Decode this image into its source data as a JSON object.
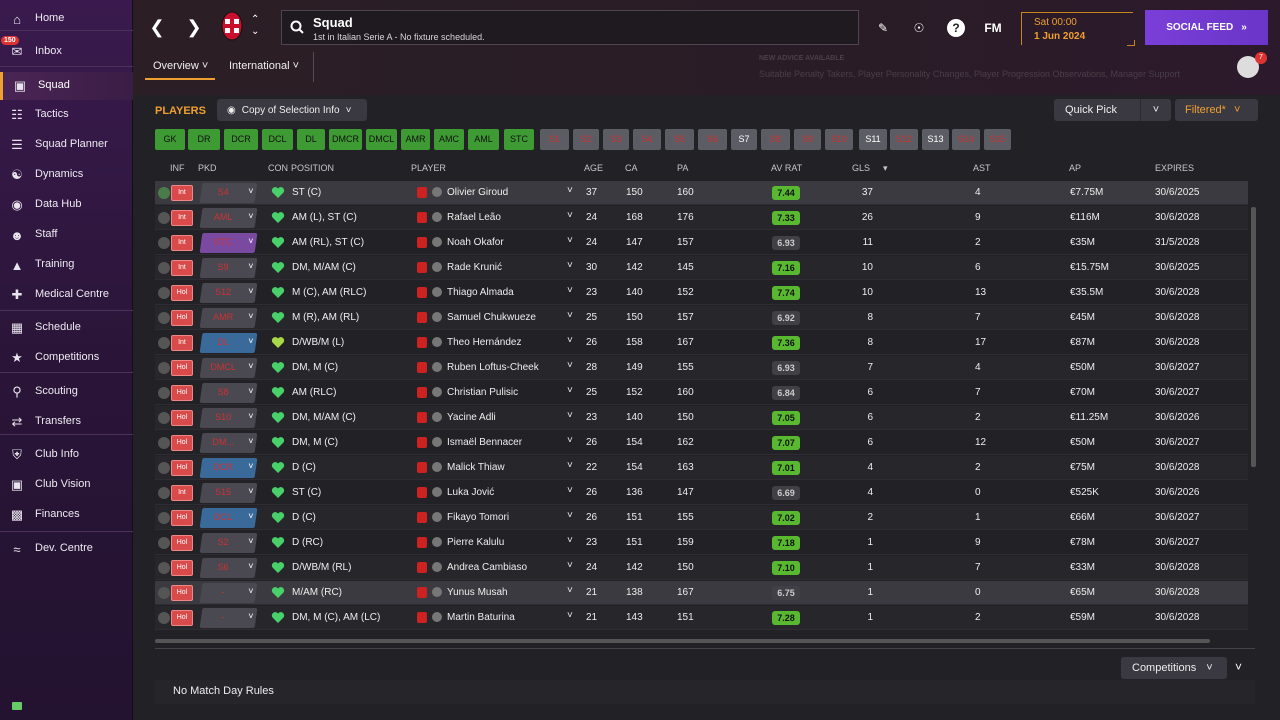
{
  "sidebar": {
    "items": [
      {
        "label": "Home",
        "icon": "home-icon"
      },
      {
        "label": "Inbox",
        "icon": "inbox-icon",
        "badge": "150"
      },
      {
        "label": "Squad",
        "icon": "squad-icon",
        "active": true
      },
      {
        "label": "Tactics",
        "icon": "tactics-icon"
      },
      {
        "label": "Squad Planner",
        "icon": "squad-planner-icon"
      },
      {
        "label": "Dynamics",
        "icon": "dynamics-icon"
      },
      {
        "label": "Data Hub",
        "icon": "data-hub-icon"
      },
      {
        "label": "Staff",
        "icon": "staff-icon"
      },
      {
        "label": "Training",
        "icon": "training-icon"
      },
      {
        "label": "Medical Centre",
        "icon": "medical-icon"
      },
      {
        "label": "Schedule",
        "icon": "schedule-icon"
      },
      {
        "label": "Competitions",
        "icon": "trophy-icon"
      },
      {
        "label": "Scouting",
        "icon": "scouting-icon"
      },
      {
        "label": "Transfers",
        "icon": "transfers-icon"
      },
      {
        "label": "Club Info",
        "icon": "club-info-icon"
      },
      {
        "label": "Club Vision",
        "icon": "club-vision-icon"
      },
      {
        "label": "Finances",
        "icon": "finances-icon"
      },
      {
        "label": "Dev. Centre",
        "icon": "dev-centre-icon"
      }
    ]
  },
  "header": {
    "title": "Squad",
    "subtitle": "1st in Italian Serie A - No fixture scheduled.",
    "date_day": "Sat 00:00",
    "date_date": "1 Jun 2024",
    "social_label": "SOCIAL FEED",
    "fm_label": "FM",
    "tabs": [
      {
        "label": "Overview"
      },
      {
        "label": "International"
      }
    ],
    "advice_title": "NEW ADVICE AVAILABLE",
    "advice_text": "Suitable Penalty Takers, Player Personality Changes, Player Progression Observations, Manager Support",
    "manager_badge": "7"
  },
  "toolbar": {
    "players_label": "PLAYERS",
    "copy_label": "Copy of Selection Info",
    "quick_pick": "Quick Pick",
    "filtered": "Filtered*"
  },
  "positions": [
    "GK",
    "DR",
    "DCR",
    "DCL",
    "DL",
    "DMCR",
    "DMCL",
    "AMR",
    "AMC",
    "AML",
    "STC",
    "S1",
    "S2",
    "S3",
    "S4",
    "S5",
    "S6",
    "S7",
    "S8",
    "S9",
    "S10",
    "S11",
    "S12",
    "S13",
    "S14",
    "S15"
  ],
  "columns": {
    "inf": "INF",
    "pkd": "PKD",
    "con": "CON",
    "position": "POSITION",
    "player": "PLAYER",
    "age": "AGE",
    "ca": "CA",
    "pa": "PA",
    "avrat": "AV RAT",
    "gls": "GLS",
    "ast": "AST",
    "ap": "AP",
    "expires": "EXPIRES"
  },
  "rows": [
    {
      "inf": "Int",
      "pkd": "S4",
      "position": "ST (C)",
      "player": "Olivier Giroud",
      "age": "37",
      "ca": "150",
      "pa": "160",
      "rat": "7.44",
      "gls": "37",
      "ast": "4",
      "ap": "€7.75M",
      "expires": "30/6/2025"
    },
    {
      "inf": "Int",
      "pkd": "AML",
      "position": "AM (L), ST (C)",
      "player": "Rafael Leão",
      "age": "24",
      "ca": "168",
      "pa": "176",
      "rat": "7.33",
      "gls": "26",
      "ast": "9",
      "ap": "€116M",
      "expires": "30/6/2028"
    },
    {
      "inf": "Int",
      "pkd": "STC",
      "position": "AM (RL), ST (C)",
      "player": "Noah Okafor",
      "age": "24",
      "ca": "147",
      "pa": "157",
      "rat": "6.93",
      "gls": "11",
      "ast": "2",
      "ap": "€35M",
      "expires": "31/5/2028"
    },
    {
      "inf": "Int",
      "pkd": "S9",
      "position": "DM, M/AM (C)",
      "player": "Rade Krunić",
      "age": "30",
      "ca": "142",
      "pa": "145",
      "rat": "7.16",
      "gls": "10",
      "ast": "6",
      "ap": "€15.75M",
      "expires": "30/6/2025"
    },
    {
      "inf": "Hol",
      "pkd": "S12",
      "position": "M (C), AM (RLC)",
      "player": "Thiago Almada",
      "age": "23",
      "ca": "140",
      "pa": "152",
      "rat": "7.74",
      "gls": "10",
      "ast": "13",
      "ap": "€35.5M",
      "expires": "30/6/2028"
    },
    {
      "inf": "Hol",
      "pkd": "AMR",
      "position": "M (R), AM (RL)",
      "player": "Samuel Chukwueze",
      "age": "25",
      "ca": "150",
      "pa": "157",
      "rat": "6.92",
      "gls": "8",
      "ast": "7",
      "ap": "€45M",
      "expires": "30/6/2028"
    },
    {
      "inf": "Int",
      "pkd": "DL",
      "position": "D/WB/M (L)",
      "player": "Theo Hernández",
      "age": "26",
      "ca": "158",
      "pa": "167",
      "rat": "7.36",
      "gls": "8",
      "ast": "17",
      "ap": "€87M",
      "expires": "30/6/2028"
    },
    {
      "inf": "Hol",
      "pkd": "DMCL",
      "position": "DM, M (C)",
      "player": "Ruben Loftus-Cheek",
      "age": "28",
      "ca": "149",
      "pa": "155",
      "rat": "6.93",
      "gls": "7",
      "ast": "4",
      "ap": "€50M",
      "expires": "30/6/2027"
    },
    {
      "inf": "Hol",
      "pkd": "S8",
      "position": "AM (RLC)",
      "player": "Christian Pulisic",
      "age": "25",
      "ca": "152",
      "pa": "160",
      "rat": "6.84",
      "gls": "6",
      "ast": "7",
      "ap": "€70M",
      "expires": "30/6/2027"
    },
    {
      "inf": "Hol",
      "pkd": "S10",
      "position": "DM, M/AM (C)",
      "player": "Yacine Adli",
      "age": "23",
      "ca": "140",
      "pa": "150",
      "rat": "7.05",
      "gls": "6",
      "ast": "2",
      "ap": "€11.25M",
      "expires": "30/6/2026"
    },
    {
      "inf": "Hol",
      "pkd": "DM...",
      "position": "DM, M (C)",
      "player": "Ismaël Bennacer",
      "age": "26",
      "ca": "154",
      "pa": "162",
      "rat": "7.07",
      "gls": "6",
      "ast": "12",
      "ap": "€50M",
      "expires": "30/6/2027"
    },
    {
      "inf": "Hol",
      "pkd": "DCR",
      "position": "D (C)",
      "player": "Malick Thiaw",
      "age": "22",
      "ca": "154",
      "pa": "163",
      "rat": "7.01",
      "gls": "4",
      "ast": "2",
      "ap": "€75M",
      "expires": "30/6/2028"
    },
    {
      "inf": "Int",
      "pkd": "S15",
      "position": "ST (C)",
      "player": "Luka Jović",
      "age": "26",
      "ca": "136",
      "pa": "147",
      "rat": "6.69",
      "gls": "4",
      "ast": "0",
      "ap": "€525K",
      "expires": "30/6/2026"
    },
    {
      "inf": "Hol",
      "pkd": "DCL",
      "position": "D (C)",
      "player": "Fikayo Tomori",
      "age": "26",
      "ca": "151",
      "pa": "155",
      "rat": "7.02",
      "gls": "2",
      "ast": "1",
      "ap": "€66M",
      "expires": "30/6/2027"
    },
    {
      "inf": "Hol",
      "pkd": "S2",
      "position": "D (RC)",
      "player": "Pierre Kalulu",
      "age": "23",
      "ca": "151",
      "pa": "159",
      "rat": "7.18",
      "gls": "1",
      "ast": "9",
      "ap": "€78M",
      "expires": "30/6/2027"
    },
    {
      "inf": "Hol",
      "pkd": "S6",
      "position": "D/WB/M (RL)",
      "player": "Andrea Cambiaso",
      "age": "24",
      "ca": "142",
      "pa": "150",
      "rat": "7.10",
      "gls": "1",
      "ast": "7",
      "ap": "€33M",
      "expires": "30/6/2028"
    },
    {
      "inf": "Hol",
      "pkd": "-",
      "position": "M/AM (RC)",
      "player": "Yunus Musah",
      "age": "21",
      "ca": "138",
      "pa": "167",
      "rat": "6.75",
      "gls": "1",
      "ast": "0",
      "ap": "€65M",
      "expires": "30/6/2028"
    },
    {
      "inf": "Hol",
      "pkd": "-",
      "position": "DM, M (C), AM (LC)",
      "player": "Martin Baturina",
      "age": "21",
      "ca": "143",
      "pa": "151",
      "rat": "7.28",
      "gls": "1",
      "ast": "2",
      "ap": "€59M",
      "expires": "30/6/2028"
    }
  ],
  "footer": {
    "competitions": "Competitions",
    "no_match": "No Match Day Rules"
  }
}
